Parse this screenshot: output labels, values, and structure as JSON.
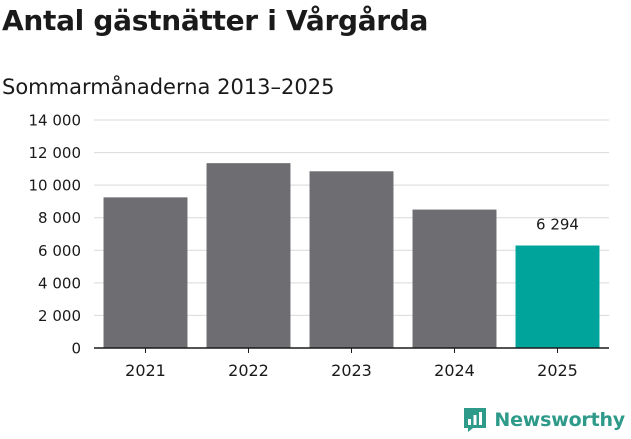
{
  "title": "Antal gästnätter i Vårgårda",
  "subtitle": "Sommarmånaderna 2013–2025",
  "brand": {
    "name": "Newsworthy",
    "icon": "newsworthy-logo-icon",
    "color": "#2e9a8a"
  },
  "chart_data": {
    "type": "bar",
    "categories": [
      "2021",
      "2022",
      "2023",
      "2024",
      "2025"
    ],
    "values": [
      9250,
      11350,
      10850,
      8500,
      6294
    ],
    "ylim": [
      0,
      14000
    ],
    "yticks": [
      "0",
      "2 000",
      "4 000",
      "6 000",
      "8 000",
      "10 000",
      "12 000",
      "14 000"
    ],
    "data_labels": [
      "",
      "",
      "",
      "",
      "6 294"
    ],
    "colors": {
      "bar": "#6e6d72",
      "highlight": "#00a49a",
      "grid": "#d9d9d9",
      "axis": "#1a1a1a"
    },
    "grid": true
  }
}
